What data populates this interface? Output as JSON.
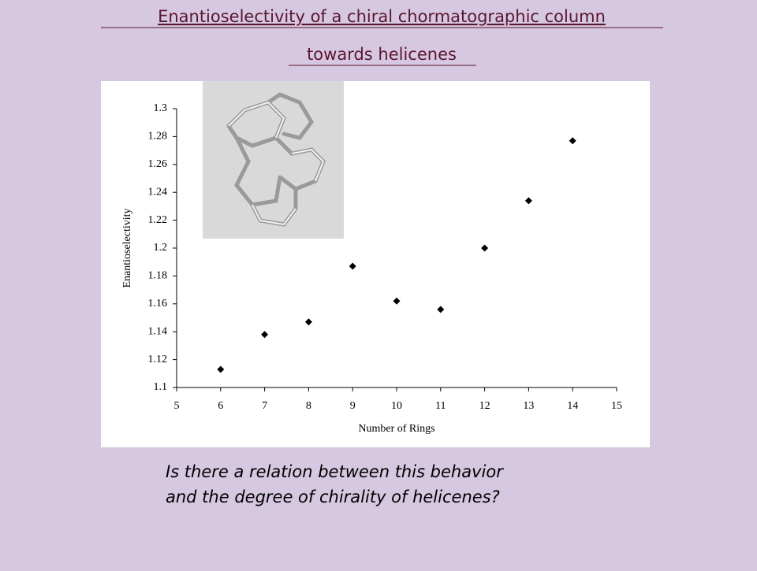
{
  "slide": {
    "title_lines": [
      "Enantioselectivity of a chiral chormatographic column",
      "towards helicenes"
    ],
    "question_lines": [
      "Is there a relation between this behavior",
      "and the degree of chirality of helicenes?"
    ]
  },
  "chart_data": {
    "type": "scatter",
    "x_label": "Number of Rings",
    "y_label": "Enantioselectivity",
    "x": [
      6,
      7,
      8,
      9,
      10,
      11,
      12,
      13,
      14
    ],
    "values": [
      1.113,
      1.138,
      1.147,
      1.187,
      1.162,
      1.156,
      1.2,
      1.234,
      1.277
    ],
    "color": "#000000",
    "xlim": [
      5,
      15
    ],
    "xticks": [
      5,
      6,
      7,
      8,
      9,
      10,
      11,
      12,
      13,
      14,
      15
    ],
    "ylim": [
      1.1,
      1.3
    ],
    "yticks": [
      1.1,
      1.12,
      1.14,
      1.16,
      1.18,
      1.2,
      1.22,
      1.24,
      1.26,
      1.28,
      1.3
    ]
  }
}
